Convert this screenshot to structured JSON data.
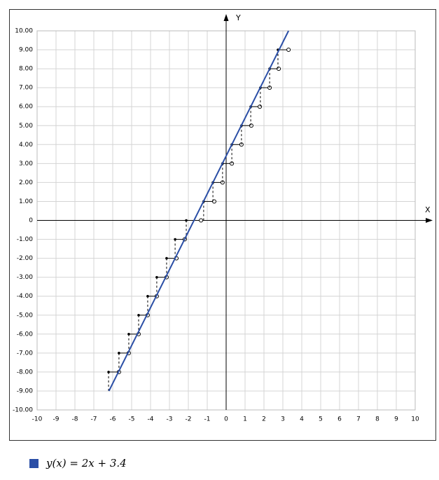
{
  "chart_data": {
    "type": "line",
    "x_label": "X",
    "y_label": "Y",
    "xlim": [
      -10,
      10
    ],
    "ylim": [
      -10,
      10
    ],
    "xticks": [
      -10,
      -9,
      -8,
      -7,
      -6,
      -5,
      -4,
      -3,
      -2,
      -1,
      0,
      1,
      2,
      3,
      4,
      5,
      6,
      7,
      8,
      9,
      10
    ],
    "yticks": [
      {
        "value": -10,
        "label": "-10.00"
      },
      {
        "value": -9,
        "label": "-9.00"
      },
      {
        "value": -8,
        "label": "-8.00"
      },
      {
        "value": -7,
        "label": "-7.00"
      },
      {
        "value": -6,
        "label": "-6.00"
      },
      {
        "value": -5,
        "label": "-5.00"
      },
      {
        "value": -4,
        "label": "-4.00"
      },
      {
        "value": -3,
        "label": "-3.00"
      },
      {
        "value": -2,
        "label": "-2.00"
      },
      {
        "value": -1,
        "label": "-1.00"
      },
      0,
      {
        "value": 1,
        "label": "1.00"
      },
      {
        "value": 2,
        "label": "2.00"
      },
      {
        "value": 3,
        "label": "3.00"
      },
      {
        "value": 4,
        "label": "4.00"
      },
      {
        "value": 5,
        "label": "5.00"
      },
      {
        "value": 6,
        "label": "6.00"
      },
      {
        "value": 7,
        "label": "7.00"
      },
      {
        "value": 8,
        "label": "8.00"
      },
      {
        "value": 9,
        "label": "9.00"
      },
      {
        "value": 10,
        "label": "10.00"
      }
    ],
    "grid": true,
    "series": [
      {
        "name": "y(x) = 2x + 3.4",
        "color": "#2a4ea6",
        "x": [
          -6.2,
          3.3
        ],
        "values": [
          -9,
          10
        ]
      }
    ],
    "steps": [
      {
        "x": [
          -6.22,
          -5.67
        ],
        "y": -8
      },
      {
        "x": [
          -5.67,
          -5.15
        ],
        "y": -7
      },
      {
        "x": [
          -5.15,
          -4.63
        ],
        "y": -6
      },
      {
        "x": [
          -4.63,
          -4.15
        ],
        "y": -5
      },
      {
        "x": [
          -4.15,
          -3.67
        ],
        "y": -4
      },
      {
        "x": [
          -3.67,
          -3.15
        ],
        "y": -3
      },
      {
        "x": [
          -3.15,
          -2.63
        ],
        "y": -2
      },
      {
        "x": [
          -2.7,
          -2.19
        ],
        "y": -1
      },
      {
        "x": [
          -2.11,
          -1.33
        ],
        "y": 0
      },
      {
        "x": [
          -1.19,
          -0.63
        ],
        "y": 1
      },
      {
        "x": [
          -0.7,
          -0.19
        ],
        "y": 2
      },
      {
        "x": [
          -0.19,
          0.3
        ],
        "y": 3
      },
      {
        "x": [
          0.3,
          0.81
        ],
        "y": 4
      },
      {
        "x": [
          0.81,
          1.33
        ],
        "y": 5
      },
      {
        "x": [
          1.3,
          1.78
        ],
        "y": 6
      },
      {
        "x": [
          1.81,
          2.3
        ],
        "y": 7
      },
      {
        "x": [
          2.3,
          2.78
        ],
        "y": 8
      },
      {
        "x": [
          2.74,
          3.3
        ],
        "y": 9
      }
    ]
  }
}
